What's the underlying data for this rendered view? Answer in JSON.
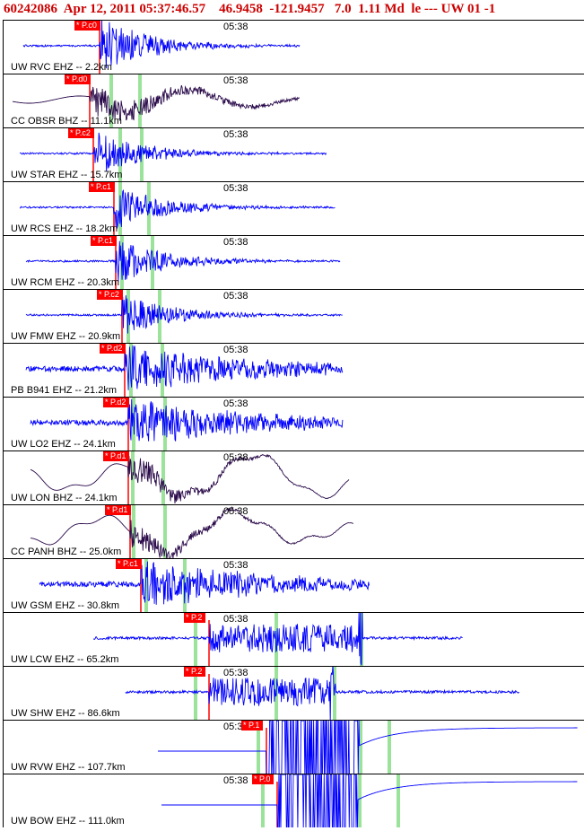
{
  "header": {
    "event_id": "60242086",
    "datetime": "Apr 12, 2011 05:37:46.57",
    "lat": "46.9458",
    "lon": "-121.9457",
    "depth": "7.0",
    "magnitude": "1.11 Md",
    "tail": "le --- UW 01 -1"
  },
  "time_label": "05:38",
  "colors": {
    "trace_blue": "#0000ff",
    "trace_dark": "#2a0a4a",
    "pick_red": "#ff0000",
    "arrival_green": "#9be39b",
    "header_red": "#cc0000"
  },
  "traces": [
    {
      "label": "UW RVC EHZ -- 2.2km",
      "pick": "P.c0",
      "style": "blue"
    },
    {
      "label": "CC OBSR BHZ -- 11.1km",
      "pick": "P.d0",
      "style": "dark"
    },
    {
      "label": "UW STAR EHZ -- 15.7km",
      "pick": "P.c2",
      "style": "blue"
    },
    {
      "label": "UW RCS EHZ -- 18.2km",
      "pick": "P.c1",
      "style": "blue"
    },
    {
      "label": "UW RCM EHZ -- 20.3km",
      "pick": "P.c1",
      "style": "blue"
    },
    {
      "label": "UW FMW EHZ -- 20.9km",
      "pick": "P.c2",
      "style": "blue"
    },
    {
      "label": "PB B941 EHZ -- 21.2km",
      "pick": "P.d2",
      "style": "blue"
    },
    {
      "label": "UW LO2 EHZ -- 24.1km",
      "pick": "P.d2",
      "style": "blue"
    },
    {
      "label": "UW LON BHZ -- 24.1km",
      "pick": "P.d1",
      "style": "dark"
    },
    {
      "label": "CC PANH BHZ -- 25.0km",
      "pick": "P.d1",
      "style": "dark"
    },
    {
      "label": "UW GSM EHZ -- 30.8km",
      "pick": "P.c1",
      "style": "blue"
    },
    {
      "label": "UW LCW EHZ -- 65.2km",
      "pick": "P.2",
      "style": "blue"
    },
    {
      "label": "UW SHW EHZ -- 86.6km",
      "pick": "P.2",
      "style": "blue"
    },
    {
      "label": "UW RVW EHZ -- 107.7km",
      "pick": "P.1",
      "style": "blue"
    },
    {
      "label": "UW BOW EHZ -- 111.0km",
      "pick": "P.0",
      "style": "blue"
    }
  ]
}
